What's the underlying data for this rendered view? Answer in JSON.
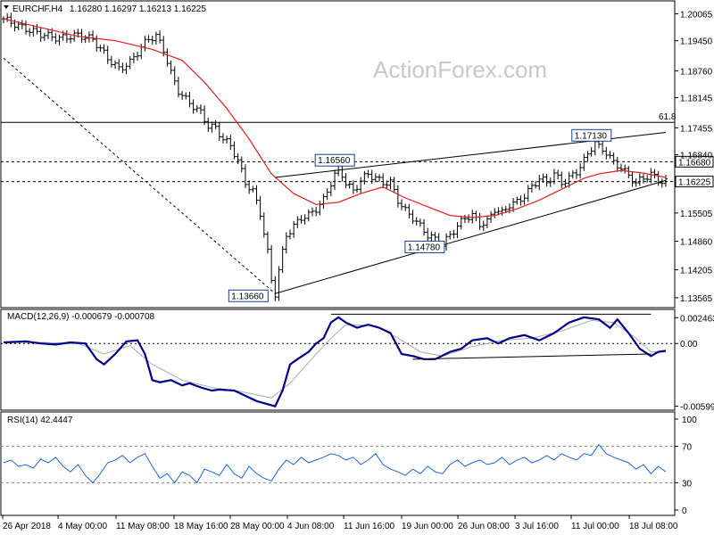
{
  "header": {
    "symbol": "EURCHF,H4",
    "ohlc": "1.16280 1.16297 1.16213 1.16225"
  },
  "watermark": "ActionForex.com",
  "chart_data": [
    {
      "type": "candlestick",
      "title": "EURCHF,H4",
      "ylim": [
        1.134,
        1.203
      ],
      "y_ticks": [
        "1.20065",
        "1.19450",
        "1.18760",
        "1.18145",
        "1.17455",
        "1.16840",
        "1.16225",
        "1.15505",
        "1.14860",
        "1.14205",
        "1.13565"
      ],
      "x_ticks": [
        "26 Apr 2018",
        "4 May 00:00",
        "11 May 08:00",
        "18 May 16:00",
        "28 May 00:00",
        "4 Jun 08:00",
        "11 Jun 16:00",
        "19 Jun 00:00",
        "26 Jun 08:00",
        "3 Jul 16:00",
        "11 Jul 00:00",
        "18 Jul 08:00"
      ],
      "close_path": [
        [
          0,
          1.1995
        ],
        [
          5,
          1.1975
        ],
        [
          10,
          1.196
        ],
        [
          15,
          1.195
        ],
        [
          20,
          1.1958
        ],
        [
          24,
          1.1948
        ],
        [
          28,
          1.1905
        ],
        [
          31,
          1.188
        ],
        [
          34,
          1.1895
        ],
        [
          37,
          1.193
        ],
        [
          39,
          1.195
        ],
        [
          41,
          1.1955
        ],
        [
          43,
          1.1925
        ],
        [
          45,
          1.187
        ],
        [
          47,
          1.183
        ],
        [
          49,
          1.181
        ],
        [
          51,
          1.1795
        ],
        [
          53,
          1.178
        ],
        [
          55,
          1.175
        ],
        [
          57,
          1.1745
        ],
        [
          59,
          1.172
        ],
        [
          61,
          1.1705
        ],
        [
          63,
          1.167
        ],
        [
          65,
          1.162
        ],
        [
          67,
          1.16
        ],
        [
          69,
          1.155
        ],
        [
          71,
          1.146
        ],
        [
          72,
          1.1395
        ],
        [
          73,
          1.1366
        ],
        [
          74,
          1.142
        ],
        [
          76,
          1.15
        ],
        [
          78,
          1.152
        ],
        [
          80,
          1.154
        ],
        [
          82,
          1.1545
        ],
        [
          84,
          1.156
        ],
        [
          86,
          1.158
        ],
        [
          88,
          1.162
        ],
        [
          90,
          1.1656
        ],
        [
          92,
          1.162
        ],
        [
          94,
          1.16
        ],
        [
          96,
          1.1625
        ],
        [
          98,
          1.164
        ],
        [
          100,
          1.163
        ],
        [
          102,
          1.162
        ],
        [
          104,
          1.162
        ],
        [
          106,
          1.158
        ],
        [
          108,
          1.1555
        ],
        [
          110,
          1.154
        ],
        [
          112,
          1.152
        ],
        [
          114,
          1.15
        ],
        [
          116,
          1.149
        ],
        [
          118,
          1.1478
        ],
        [
          120,
          1.15
        ],
        [
          122,
          1.152
        ],
        [
          124,
          1.154
        ],
        [
          126,
          1.1545
        ],
        [
          128,
          1.1525
        ],
        [
          130,
          1.153
        ],
        [
          132,
          1.156
        ],
        [
          134,
          1.155
        ],
        [
          136,
          1.157
        ],
        [
          138,
          1.1575
        ],
        [
          140,
          1.159
        ],
        [
          142,
          1.161
        ],
        [
          144,
          1.163
        ],
        [
          146,
          1.162
        ],
        [
          148,
          1.164
        ],
        [
          150,
          1.162
        ],
        [
          152,
          1.163
        ],
        [
          154,
          1.1645
        ],
        [
          156,
          1.167
        ],
        [
          158,
          1.17
        ],
        [
          159,
          1.1713
        ],
        [
          160,
          1.17
        ],
        [
          162,
          1.169
        ],
        [
          164,
          1.1665
        ],
        [
          166,
          1.1655
        ],
        [
          168,
          1.1635
        ],
        [
          170,
          1.162
        ],
        [
          172,
          1.163
        ],
        [
          174,
          1.164
        ],
        [
          176,
          1.1625
        ],
        [
          178,
          1.1622
        ]
      ],
      "ma_path": [
        [
          0,
          1.1995
        ],
        [
          20,
          1.1955
        ],
        [
          30,
          1.1945
        ],
        [
          40,
          1.1925
        ],
        [
          48,
          1.19
        ],
        [
          54,
          1.185
        ],
        [
          60,
          1.179
        ],
        [
          66,
          1.172
        ],
        [
          72,
          1.164
        ],
        [
          78,
          1.1595
        ],
        [
          84,
          1.157
        ],
        [
          90,
          1.1575
        ],
        [
          96,
          1.1595
        ],
        [
          102,
          1.161
        ],
        [
          108,
          1.1585
        ],
        [
          114,
          1.1565
        ],
        [
          120,
          1.1545
        ],
        [
          126,
          1.154
        ],
        [
          132,
          1.1545
        ],
        [
          138,
          1.156
        ],
        [
          144,
          1.158
        ],
        [
          150,
          1.1605
        ],
        [
          156,
          1.163
        ],
        [
          160,
          1.164
        ],
        [
          166,
          1.1648
        ],
        [
          172,
          1.1642
        ],
        [
          178,
          1.1632
        ]
      ],
      "levels": [
        {
          "label": "61.8",
          "value": 1.1758,
          "style": "solid"
        },
        {
          "label": "1.16680",
          "value": 1.1668,
          "style": "dashed"
        },
        {
          "label": "1.16225",
          "value": 1.16225,
          "style": "dashed"
        }
      ],
      "trendlines": [
        {
          "from": [
            0,
            1.1905
          ],
          "to": [
            73,
            1.1366
          ],
          "style": "dashed"
        },
        {
          "from": [
            73,
            1.1366
          ],
          "to": [
            178,
            1.1625
          ],
          "style": "solid"
        },
        {
          "from": [
            73,
            1.1632
          ],
          "to": [
            178,
            1.1735
          ],
          "style": "solid"
        }
      ],
      "annotations": [
        {
          "label": "1.13660",
          "x": 73,
          "y": 1.1366
        },
        {
          "label": "1.16560",
          "x": 90,
          "y": 1.1656
        },
        {
          "label": "1.14780",
          "x": 118,
          "y": 1.1478
        },
        {
          "label": "1.17130",
          "x": 159,
          "y": 1.1713
        }
      ],
      "price_tags": [
        {
          "label": "1.16680",
          "value": 1.1668
        },
        {
          "label": "1.16225",
          "value": 1.16225
        }
      ]
    },
    {
      "type": "line",
      "title": "MACD(12,26,9) -0.000679 -0.000708",
      "ylim": [
        -0.0062,
        0.003
      ],
      "y_ticks": [
        "0.002463",
        "0.00",
        "-0.005992"
      ],
      "macd_path": [
        [
          0,
          0.0001
        ],
        [
          6,
          0.0002
        ],
        [
          10,
          0.0
        ],
        [
          14,
          -0.0001
        ],
        [
          18,
          0.0001
        ],
        [
          22,
          0.0
        ],
        [
          25,
          -0.0015
        ],
        [
          27,
          -0.002
        ],
        [
          30,
          -0.001
        ],
        [
          33,
          0.0002
        ],
        [
          36,
          0.0003
        ],
        [
          38,
          -0.001
        ],
        [
          40,
          -0.0035
        ],
        [
          42,
          -0.0037
        ],
        [
          45,
          -0.0035
        ],
        [
          48,
          -0.004
        ],
        [
          50,
          -0.0038
        ],
        [
          53,
          -0.0042
        ],
        [
          56,
          -0.0045
        ],
        [
          58,
          -0.0044
        ],
        [
          62,
          -0.0045
        ],
        [
          65,
          -0.005
        ],
        [
          68,
          -0.0055
        ],
        [
          71,
          -0.0058
        ],
        [
          73,
          -0.006
        ],
        [
          75,
          -0.0045
        ],
        [
          77,
          -0.002
        ],
        [
          79,
          -0.0015
        ],
        [
          82,
          -0.0008
        ],
        [
          84,
          0.0
        ],
        [
          86,
          0.0005
        ],
        [
          88,
          0.002
        ],
        [
          90,
          0.0025
        ],
        [
          92,
          0.002
        ],
        [
          95,
          0.0015
        ],
        [
          98,
          0.0018
        ],
        [
          101,
          0.0015
        ],
        [
          104,
          0.001
        ],
        [
          107,
          -0.001
        ],
        [
          110,
          -0.0012
        ],
        [
          113,
          -0.0015
        ],
        [
          116,
          -0.0015
        ],
        [
          120,
          -0.0008
        ],
        [
          123,
          -0.0005
        ],
        [
          126,
          0.0003
        ],
        [
          130,
          0.0005
        ],
        [
          133,
          0.0
        ],
        [
          136,
          0.0005
        ],
        [
          140,
          0.0008
        ],
        [
          144,
          0.0003
        ],
        [
          148,
          0.001
        ],
        [
          152,
          0.002
        ],
        [
          156,
          0.0025
        ],
        [
          160,
          0.0023
        ],
        [
          163,
          0.0015
        ],
        [
          165,
          0.0023
        ],
        [
          168,
          0.001
        ],
        [
          171,
          -0.0005
        ],
        [
          174,
          -0.0012
        ],
        [
          176,
          -0.0008
        ],
        [
          178,
          -0.0007
        ]
      ],
      "signal_path": [
        [
          0,
          0.0001
        ],
        [
          10,
          0.0001
        ],
        [
          20,
          0.0
        ],
        [
          27,
          -0.001
        ],
        [
          34,
          -0.0002
        ],
        [
          40,
          -0.002
        ],
        [
          48,
          -0.0035
        ],
        [
          56,
          -0.0042
        ],
        [
          64,
          -0.0046
        ],
        [
          72,
          -0.0052
        ],
        [
          77,
          -0.0038
        ],
        [
          82,
          -0.0018
        ],
        [
          88,
          0.0005
        ],
        [
          92,
          0.0018
        ],
        [
          100,
          0.0017
        ],
        [
          106,
          0.0005
        ],
        [
          112,
          -0.0008
        ],
        [
          118,
          -0.0012
        ],
        [
          126,
          -0.0003
        ],
        [
          134,
          0.0003
        ],
        [
          142,
          0.0005
        ],
        [
          150,
          0.0012
        ],
        [
          158,
          0.0022
        ],
        [
          164,
          0.002
        ],
        [
          170,
          0.0005
        ],
        [
          174,
          -0.0008
        ],
        [
          178,
          -0.0008
        ]
      ],
      "trendlines": [
        {
          "from": [
            88,
            0.0028
          ],
          "to": [
            174,
            0.0028
          ]
        },
        {
          "from": [
            110,
            -0.0015
          ],
          "to": [
            174,
            -0.001
          ]
        }
      ]
    },
    {
      "type": "line",
      "title": "RSI(14) 42.4447",
      "ylim": [
        0,
        100
      ],
      "y_ticks": [
        "100",
        "70",
        "30",
        "0"
      ],
      "levels": [
        70,
        30
      ],
      "rsi_path": [
        [
          0,
          52
        ],
        [
          2,
          55
        ],
        [
          4,
          48
        ],
        [
          6,
          50
        ],
        [
          8,
          46
        ],
        [
          10,
          56
        ],
        [
          12,
          52
        ],
        [
          14,
          58
        ],
        [
          16,
          48
        ],
        [
          18,
          42
        ],
        [
          20,
          50
        ],
        [
          22,
          38
        ],
        [
          24,
          30
        ],
        [
          26,
          40
        ],
        [
          28,
          52
        ],
        [
          30,
          55
        ],
        [
          32,
          60
        ],
        [
          34,
          52
        ],
        [
          36,
          58
        ],
        [
          38,
          62
        ],
        [
          40,
          48
        ],
        [
          42,
          35
        ],
        [
          44,
          40
        ],
        [
          46,
          30
        ],
        [
          48,
          42
        ],
        [
          50,
          38
        ],
        [
          52,
          30
        ],
        [
          54,
          45
        ],
        [
          56,
          42
        ],
        [
          58,
          38
        ],
        [
          60,
          50
        ],
        [
          62,
          40
        ],
        [
          64,
          35
        ],
        [
          66,
          48
        ],
        [
          68,
          40
        ],
        [
          70,
          35
        ],
        [
          72,
          32
        ],
        [
          74,
          45
        ],
        [
          76,
          55
        ],
        [
          78,
          50
        ],
        [
          80,
          58
        ],
        [
          82,
          52
        ],
        [
          84,
          55
        ],
        [
          86,
          58
        ],
        [
          88,
          62
        ],
        [
          90,
          60
        ],
        [
          92,
          55
        ],
        [
          94,
          58
        ],
        [
          96,
          50
        ],
        [
          98,
          55
        ],
        [
          100,
          62
        ],
        [
          102,
          50
        ],
        [
          104,
          45
        ],
        [
          106,
          42
        ],
        [
          108,
          38
        ],
        [
          110,
          45
        ],
        [
          112,
          40
        ],
        [
          114,
          48
        ],
        [
          116,
          42
        ],
        [
          118,
          40
        ],
        [
          120,
          50
        ],
        [
          122,
          55
        ],
        [
          124,
          48
        ],
        [
          126,
          52
        ],
        [
          128,
          55
        ],
        [
          130,
          50
        ],
        [
          132,
          52
        ],
        [
          134,
          58
        ],
        [
          136,
          50
        ],
        [
          138,
          55
        ],
        [
          140,
          58
        ],
        [
          142,
          52
        ],
        [
          144,
          55
        ],
        [
          146,
          60
        ],
        [
          148,
          55
        ],
        [
          150,
          62
        ],
        [
          152,
          58
        ],
        [
          154,
          55
        ],
        [
          156,
          62
        ],
        [
          158,
          60
        ],
        [
          160,
          72
        ],
        [
          162,
          62
        ],
        [
          164,
          58
        ],
        [
          166,
          55
        ],
        [
          168,
          52
        ],
        [
          170,
          45
        ],
        [
          172,
          50
        ],
        [
          174,
          40
        ],
        [
          176,
          48
        ],
        [
          178,
          42
        ]
      ]
    }
  ]
}
